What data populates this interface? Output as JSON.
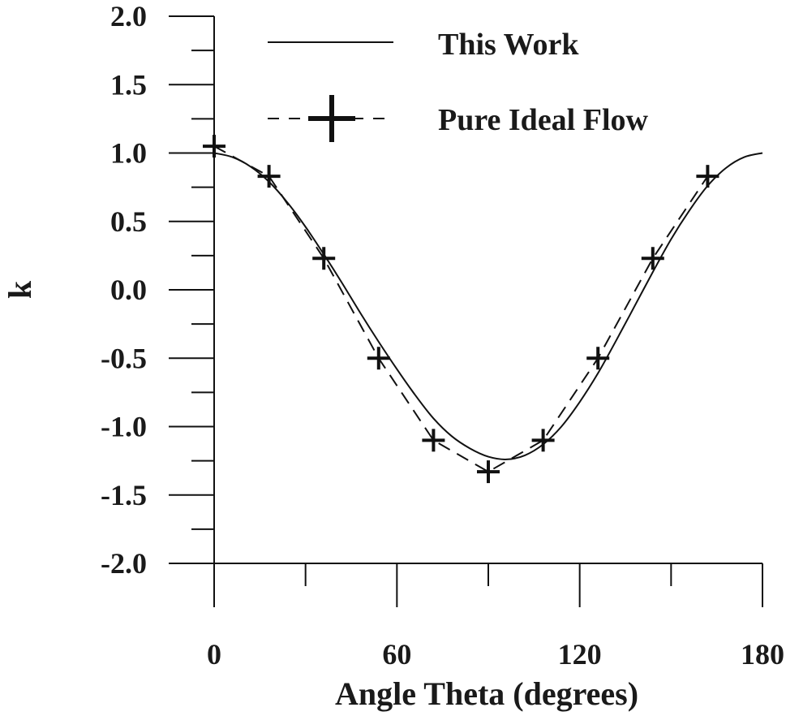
{
  "chart_data": {
    "type": "line",
    "xlabel": "Angle Theta (degrees)",
    "ylabel": "k",
    "xlim": [
      0,
      180
    ],
    "ylim": [
      -2.0,
      2.0
    ],
    "x_ticks": [
      "0",
      "60",
      "120",
      "180"
    ],
    "y_ticks": [
      "2.0",
      "1.5",
      "1.0",
      "0.5",
      "0.0",
      "-0.5",
      "-1.0",
      "-1.5",
      "-2.0"
    ],
    "grid": false,
    "legend_position": "top-right",
    "series": [
      {
        "name": "This Work",
        "style": "solid",
        "x": [
          0,
          6,
          12,
          18,
          24,
          30,
          36,
          42,
          48,
          54,
          60,
          66,
          72,
          78,
          84,
          90,
          96,
          102,
          108,
          114,
          120,
          126,
          132,
          138,
          144,
          150,
          156,
          162,
          168,
          174,
          180
        ],
        "y": [
          1.0,
          0.97,
          0.9,
          0.79,
          0.64,
          0.46,
          0.26,
          0.05,
          -0.17,
          -0.38,
          -0.58,
          -0.77,
          -0.94,
          -1.07,
          -1.16,
          -1.22,
          -1.24,
          -1.21,
          -1.13,
          -1.0,
          -0.82,
          -0.61,
          -0.37,
          -0.12,
          0.13,
          0.37,
          0.58,
          0.76,
          0.89,
          0.97,
          1.0
        ]
      },
      {
        "name": "Pure Ideal Flow",
        "style": "dashed",
        "marker": "plus",
        "x": [
          0,
          18,
          36,
          54,
          72,
          90,
          108,
          126,
          144,
          162
        ],
        "y": [
          1.05,
          0.83,
          0.23,
          -0.5,
          -1.1,
          -1.33,
          -1.1,
          -0.5,
          0.23,
          0.83
        ]
      }
    ]
  }
}
